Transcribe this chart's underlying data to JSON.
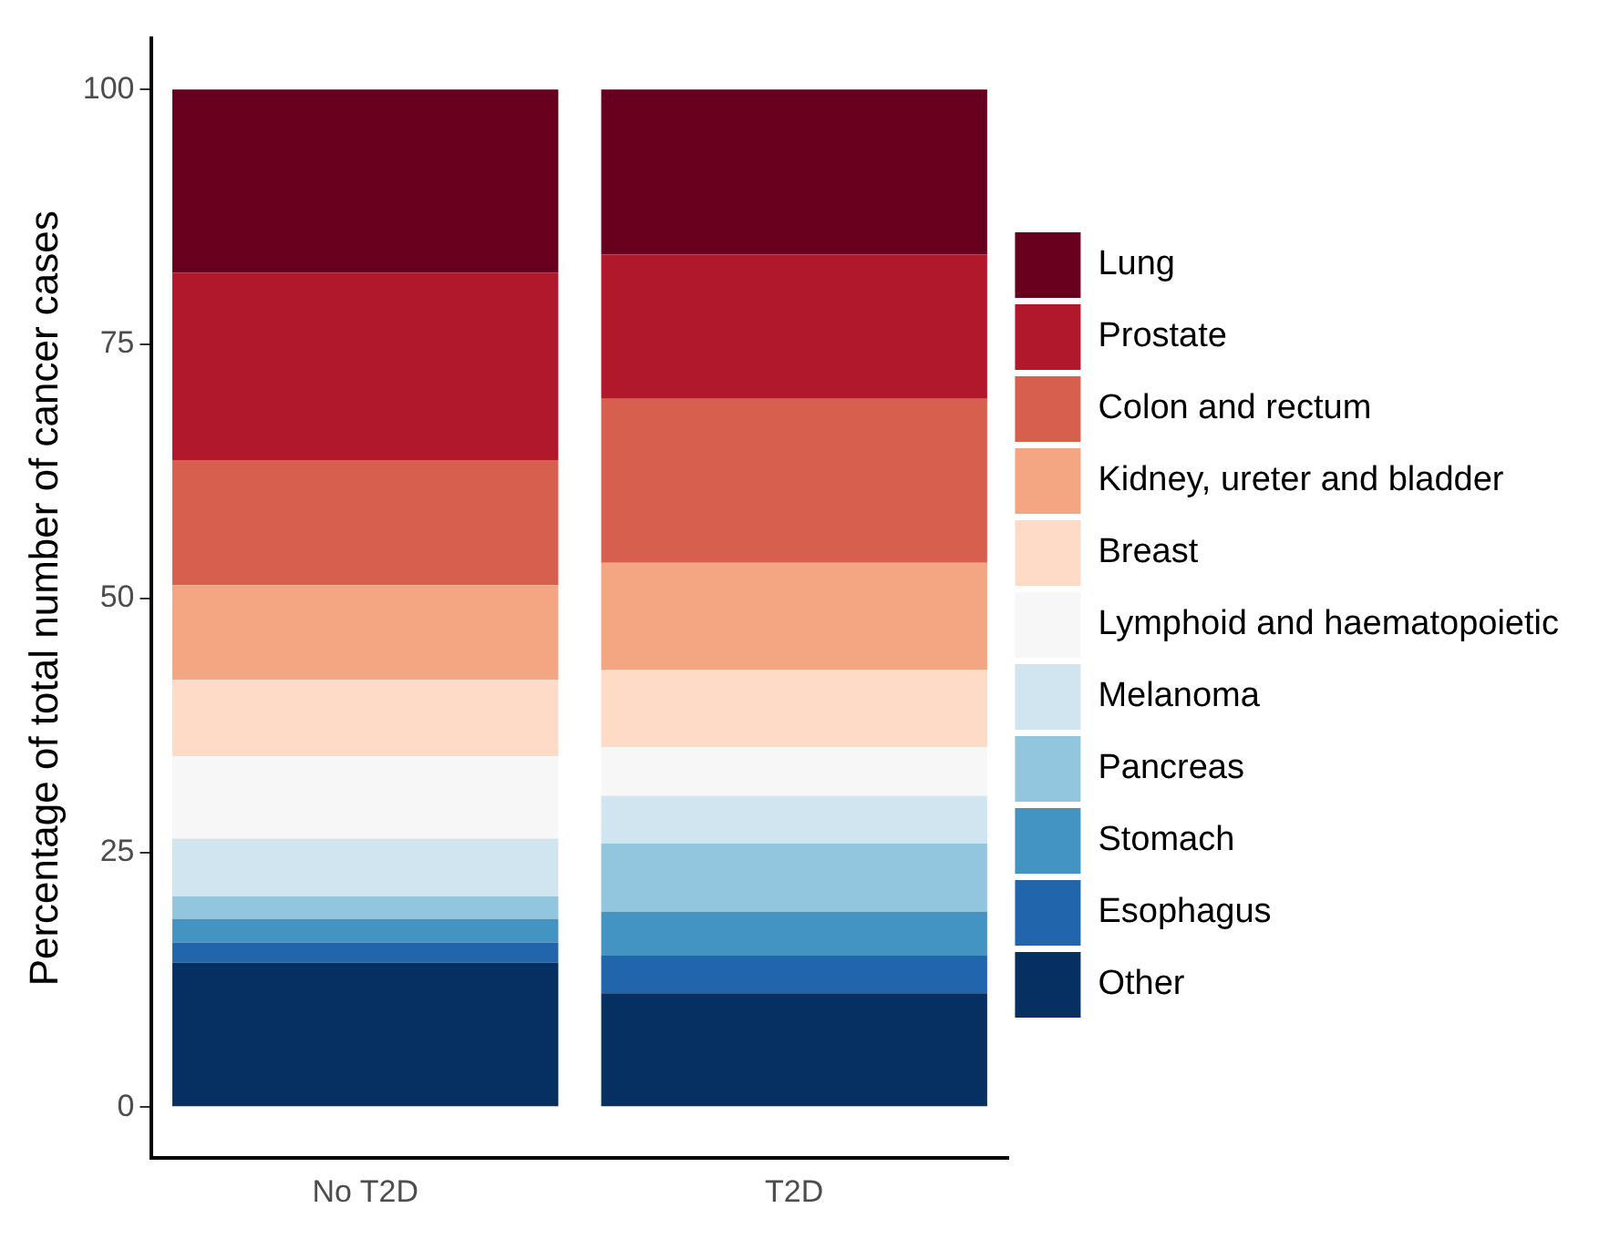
{
  "chart_data": {
    "type": "bar",
    "stacked": true,
    "ylabel": "Percentage of total number of cancer cases",
    "categories": [
      "No T2D",
      "T2D"
    ],
    "ylim": [
      -5,
      105
    ],
    "yticks": [
      0,
      25,
      50,
      75,
      100
    ],
    "grid": false,
    "legend": "right",
    "series": [
      {
        "name": "Other",
        "color": "#053061",
        "values": [
          14.2,
          11.2
        ]
      },
      {
        "name": "Esophagus",
        "color": "#2166ac",
        "values": [
          2.0,
          3.7
        ]
      },
      {
        "name": "Stomach",
        "color": "#4393c3",
        "values": [
          2.3,
          4.3
        ]
      },
      {
        "name": "Pancreas",
        "color": "#92c5de",
        "values": [
          2.2,
          6.7
        ]
      },
      {
        "name": "Melanoma",
        "color": "#d1e5f0",
        "values": [
          5.7,
          4.7
        ]
      },
      {
        "name": "Lymphoid and haematopoietic",
        "color": "#f7f7f7",
        "values": [
          8.1,
          4.8
        ]
      },
      {
        "name": "Breast",
        "color": "#fddbc7",
        "values": [
          7.5,
          7.6
        ]
      },
      {
        "name": "Kidney, ureter and bladder",
        "color": "#f4a582",
        "values": [
          9.3,
          10.5
        ]
      },
      {
        "name": "Colon and rectum",
        "color": "#d6604d",
        "values": [
          12.3,
          16.1
        ]
      },
      {
        "name": "Prostate",
        "color": "#b2182b",
        "values": [
          18.4,
          14.2
        ]
      },
      {
        "name": "Lung",
        "color": "#67001f",
        "values": [
          18.0,
          16.2
        ]
      }
    ]
  }
}
